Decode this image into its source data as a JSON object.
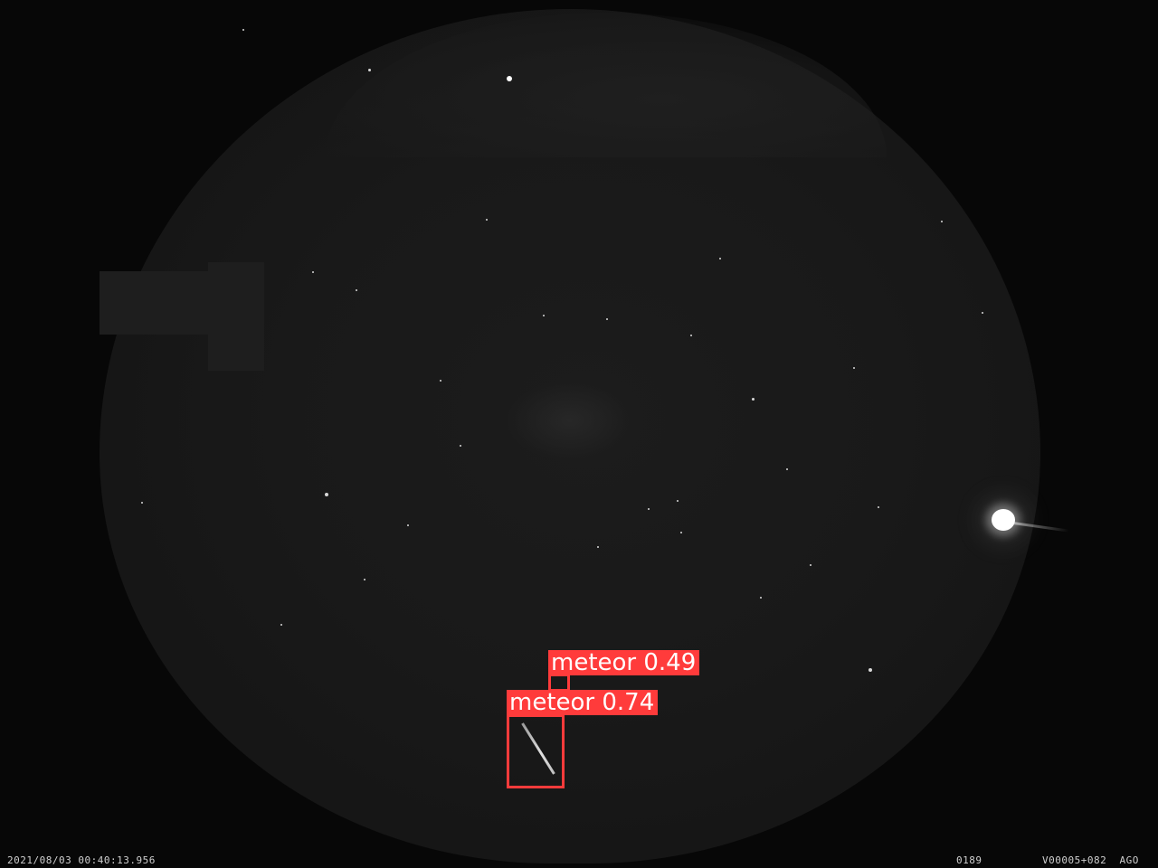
{
  "overlay": {
    "timestamp": "2021/08/03 00:40:13.956",
    "frame_number": "0189",
    "camera_code": "V00005+082  AGO"
  },
  "detections": [
    {
      "label": "meteor 0.74"
    },
    {
      "label": "meteor 0.49"
    }
  ],
  "colors": {
    "detection": "#ff3b3b",
    "sky": "#191919",
    "background": "#070707"
  }
}
